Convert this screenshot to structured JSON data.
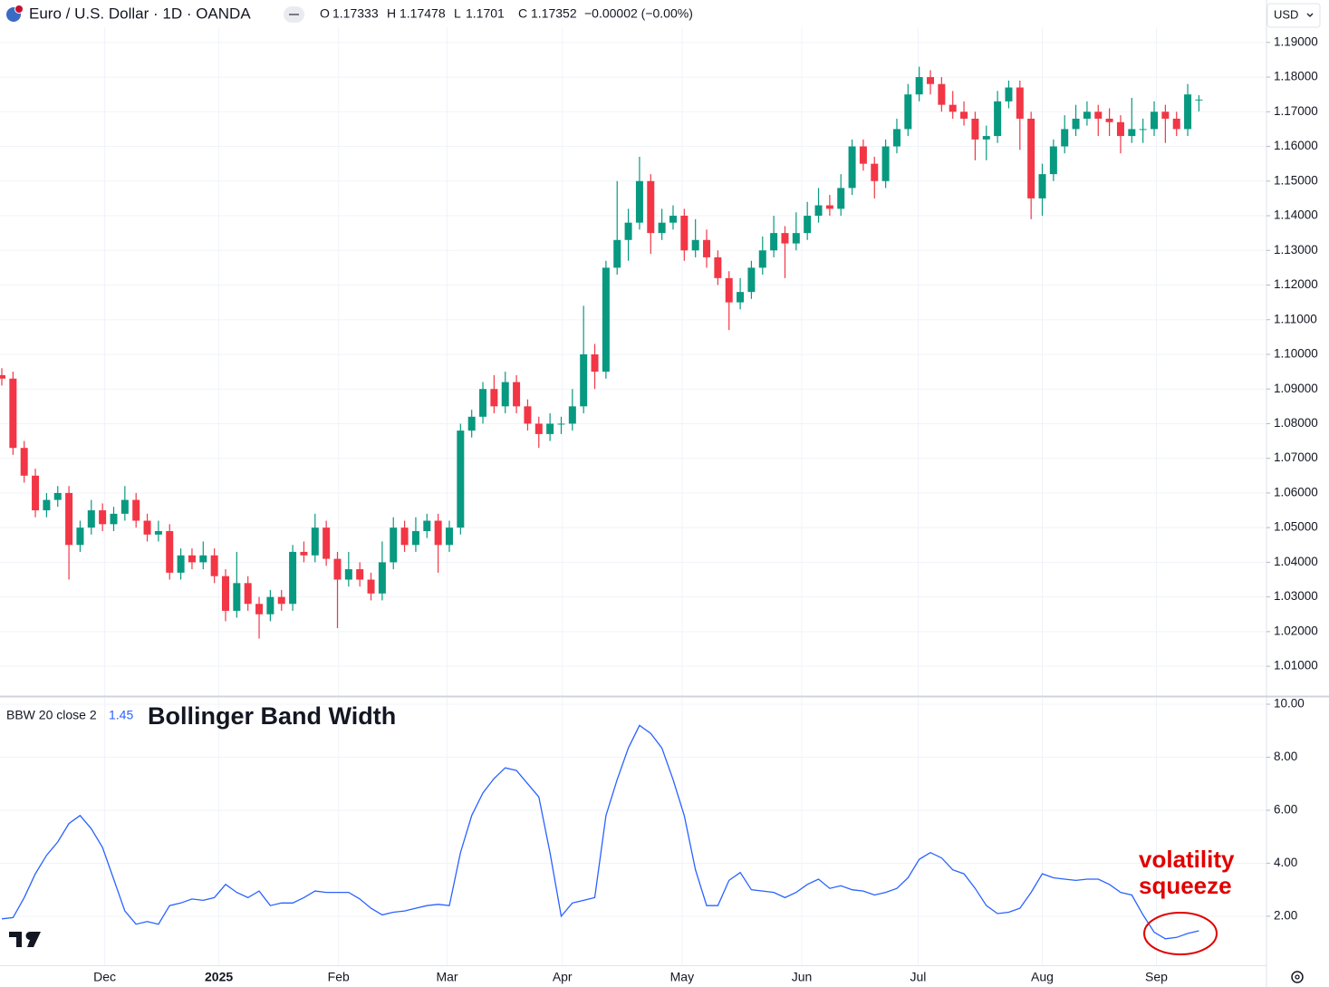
{
  "chart_data": [
    {
      "type": "candlestick",
      "title": "Euro / U.S. Dollar · 1D · OANDA",
      "ohlc_labels": [
        "O",
        "H",
        "L",
        "C"
      ],
      "change": "−0.00002 (−0.00%)",
      "currency": "USD",
      "up_color": "#089981",
      "down_color": "#f23645",
      "grid": true,
      "ylim": [
        1.0014,
        1.1944
      ],
      "yticks": [
        {
          "value": 1.19,
          "label": "1.19000"
        },
        {
          "value": 1.18,
          "label": "1.18000"
        },
        {
          "value": 1.17,
          "label": "1.17000"
        },
        {
          "value": 1.16,
          "label": "1.16000"
        },
        {
          "value": 1.15,
          "label": "1.15000"
        },
        {
          "value": 1.14,
          "label": "1.14000"
        },
        {
          "value": 1.13,
          "label": "1.13000"
        },
        {
          "value": 1.12,
          "label": "1.12000"
        },
        {
          "value": 1.11,
          "label": "1.11000"
        },
        {
          "value": 1.1,
          "label": "1.10000"
        },
        {
          "value": 1.09,
          "label": "1.09000"
        },
        {
          "value": 1.08,
          "label": "1.08000"
        },
        {
          "value": 1.07,
          "label": "1.07000"
        },
        {
          "value": 1.06,
          "label": "1.06000"
        },
        {
          "value": 1.05,
          "label": "1.05000"
        },
        {
          "value": 1.04,
          "label": "1.04000"
        },
        {
          "value": 1.03,
          "label": "1.03000"
        },
        {
          "value": 1.02,
          "label": "1.02000"
        },
        {
          "value": 1.01,
          "label": "1.01000"
        }
      ],
      "candles": [
        [
          1.094,
          1.096,
          1.091,
          1.093
        ],
        [
          1.093,
          1.095,
          1.071,
          1.073
        ],
        [
          1.073,
          1.075,
          1.063,
          1.065
        ],
        [
          1.065,
          1.067,
          1.053,
          1.055
        ],
        [
          1.055,
          1.06,
          1.053,
          1.058
        ],
        [
          1.058,
          1.062,
          1.056,
          1.06
        ],
        [
          1.06,
          1.062,
          1.035,
          1.045
        ],
        [
          1.045,
          1.052,
          1.043,
          1.05
        ],
        [
          1.05,
          1.058,
          1.048,
          1.055
        ],
        [
          1.055,
          1.057,
          1.049,
          1.051
        ],
        [
          1.051,
          1.056,
          1.049,
          1.054
        ],
        [
          1.054,
          1.062,
          1.052,
          1.058
        ],
        [
          1.058,
          1.06,
          1.05,
          1.052
        ],
        [
          1.052,
          1.054,
          1.046,
          1.048
        ],
        [
          1.048,
          1.052,
          1.046,
          1.049
        ],
        [
          1.049,
          1.051,
          1.035,
          1.037
        ],
        [
          1.037,
          1.044,
          1.035,
          1.042
        ],
        [
          1.042,
          1.044,
          1.038,
          1.04
        ],
        [
          1.04,
          1.046,
          1.038,
          1.042
        ],
        [
          1.042,
          1.044,
          1.034,
          1.036
        ],
        [
          1.036,
          1.038,
          1.023,
          1.026
        ],
        [
          1.026,
          1.043,
          1.024,
          1.034
        ],
        [
          1.034,
          1.036,
          1.026,
          1.028
        ],
        [
          1.028,
          1.03,
          1.018,
          1.025
        ],
        [
          1.025,
          1.032,
          1.023,
          1.03
        ],
        [
          1.03,
          1.032,
          1.026,
          1.028
        ],
        [
          1.028,
          1.045,
          1.026,
          1.043
        ],
        [
          1.043,
          1.046,
          1.04,
          1.042
        ],
        [
          1.042,
          1.054,
          1.04,
          1.05
        ],
        [
          1.05,
          1.052,
          1.039,
          1.041
        ],
        [
          1.041,
          1.043,
          1.021,
          1.035
        ],
        [
          1.035,
          1.043,
          1.033,
          1.038
        ],
        [
          1.038,
          1.04,
          1.033,
          1.035
        ],
        [
          1.035,
          1.037,
          1.029,
          1.031
        ],
        [
          1.031,
          1.046,
          1.029,
          1.04
        ],
        [
          1.04,
          1.053,
          1.038,
          1.05
        ],
        [
          1.05,
          1.052,
          1.043,
          1.045
        ],
        [
          1.045,
          1.053,
          1.043,
          1.049
        ],
        [
          1.049,
          1.054,
          1.047,
          1.052
        ],
        [
          1.052,
          1.054,
          1.037,
          1.045
        ],
        [
          1.045,
          1.052,
          1.043,
          1.05
        ],
        [
          1.05,
          1.08,
          1.048,
          1.078
        ],
        [
          1.078,
          1.084,
          1.076,
          1.082
        ],
        [
          1.082,
          1.092,
          1.08,
          1.09
        ],
        [
          1.09,
          1.094,
          1.083,
          1.085
        ],
        [
          1.085,
          1.095,
          1.083,
          1.092
        ],
        [
          1.092,
          1.094,
          1.083,
          1.085
        ],
        [
          1.085,
          1.087,
          1.078,
          1.08
        ],
        [
          1.08,
          1.082,
          1.073,
          1.077
        ],
        [
          1.077,
          1.083,
          1.075,
          1.08
        ],
        [
          1.08,
          1.082,
          1.077,
          1.08
        ],
        [
          1.08,
          1.09,
          1.078,
          1.085
        ],
        [
          1.085,
          1.114,
          1.083,
          1.1
        ],
        [
          1.1,
          1.103,
          1.09,
          1.095
        ],
        [
          1.095,
          1.127,
          1.093,
          1.125
        ],
        [
          1.125,
          1.15,
          1.123,
          1.133
        ],
        [
          1.133,
          1.142,
          1.127,
          1.138
        ],
        [
          1.138,
          1.157,
          1.136,
          1.15
        ],
        [
          1.15,
          1.152,
          1.129,
          1.135
        ],
        [
          1.135,
          1.142,
          1.133,
          1.138
        ],
        [
          1.138,
          1.143,
          1.136,
          1.14
        ],
        [
          1.14,
          1.142,
          1.127,
          1.13
        ],
        [
          1.13,
          1.139,
          1.128,
          1.133
        ],
        [
          1.133,
          1.136,
          1.125,
          1.128
        ],
        [
          1.128,
          1.13,
          1.12,
          1.122
        ],
        [
          1.122,
          1.124,
          1.107,
          1.115
        ],
        [
          1.115,
          1.122,
          1.113,
          1.118
        ],
        [
          1.118,
          1.127,
          1.116,
          1.125
        ],
        [
          1.125,
          1.134,
          1.123,
          1.13
        ],
        [
          1.13,
          1.14,
          1.128,
          1.135
        ],
        [
          1.135,
          1.137,
          1.122,
          1.132
        ],
        [
          1.132,
          1.141,
          1.13,
          1.135
        ],
        [
          1.135,
          1.144,
          1.133,
          1.14
        ],
        [
          1.14,
          1.148,
          1.138,
          1.143
        ],
        [
          1.143,
          1.146,
          1.14,
          1.142
        ],
        [
          1.142,
          1.152,
          1.14,
          1.148
        ],
        [
          1.148,
          1.162,
          1.146,
          1.16
        ],
        [
          1.16,
          1.162,
          1.153,
          1.155
        ],
        [
          1.155,
          1.157,
          1.145,
          1.15
        ],
        [
          1.15,
          1.162,
          1.148,
          1.16
        ],
        [
          1.16,
          1.168,
          1.158,
          1.165
        ],
        [
          1.165,
          1.178,
          1.163,
          1.175
        ],
        [
          1.175,
          1.183,
          1.173,
          1.18
        ],
        [
          1.18,
          1.182,
          1.175,
          1.178
        ],
        [
          1.178,
          1.18,
          1.17,
          1.172
        ],
        [
          1.172,
          1.176,
          1.168,
          1.17
        ],
        [
          1.17,
          1.173,
          1.166,
          1.168
        ],
        [
          1.168,
          1.17,
          1.156,
          1.162
        ],
        [
          1.162,
          1.166,
          1.156,
          1.163
        ],
        [
          1.163,
          1.176,
          1.161,
          1.173
        ],
        [
          1.173,
          1.179,
          1.171,
          1.177
        ],
        [
          1.177,
          1.179,
          1.159,
          1.168
        ],
        [
          1.168,
          1.17,
          1.139,
          1.145
        ],
        [
          1.145,
          1.155,
          1.14,
          1.152
        ],
        [
          1.152,
          1.162,
          1.15,
          1.16
        ],
        [
          1.16,
          1.169,
          1.158,
          1.165
        ],
        [
          1.165,
          1.172,
          1.163,
          1.168
        ],
        [
          1.168,
          1.173,
          1.166,
          1.17
        ],
        [
          1.17,
          1.172,
          1.163,
          1.168
        ],
        [
          1.168,
          1.171,
          1.163,
          1.167
        ],
        [
          1.167,
          1.169,
          1.158,
          1.163
        ],
        [
          1.163,
          1.174,
          1.161,
          1.165
        ],
        [
          1.165,
          1.168,
          1.161,
          1.165
        ],
        [
          1.165,
          1.173,
          1.163,
          1.17
        ],
        [
          1.17,
          1.172,
          1.161,
          1.168
        ],
        [
          1.168,
          1.17,
          1.163,
          1.165
        ],
        [
          1.165,
          1.178,
          1.163,
          1.175
        ],
        [
          1.17333,
          1.17478,
          1.1701,
          1.17352
        ]
      ]
    },
    {
      "type": "line",
      "annotations": [
        {
          "text": "Bollinger Band Width",
          "color": "#000000"
        },
        {
          "text": [
            "volatility",
            "squeeze"
          ],
          "color": "#e00000"
        }
      ],
      "grid": true,
      "ylim": [
        0.15,
        10.24
      ],
      "yticks": [
        {
          "value": 10,
          "label": "10.00"
        },
        {
          "value": 8,
          "label": "8.00"
        },
        {
          "value": 6,
          "label": "6.00"
        },
        {
          "value": 4,
          "label": "4.00"
        },
        {
          "value": 2,
          "label": "2.00"
        }
      ],
      "xlim": [
        -0.162,
        113.04
      ],
      "xticks": [
        {
          "value": 9.2,
          "label": "Dec"
        },
        {
          "value": 19.4,
          "label": "2025"
        },
        {
          "value": 30.1,
          "label": "Feb"
        },
        {
          "value": 39.8,
          "label": "Mar"
        },
        {
          "value": 50.1,
          "label": "Apr"
        },
        {
          "value": 60.8,
          "label": "May"
        },
        {
          "value": 71.5,
          "label": "Jun"
        },
        {
          "value": 81.9,
          "label": "Jul"
        },
        {
          "value": 93,
          "label": "Aug"
        },
        {
          "value": 103.2,
          "label": "Sep"
        }
      ],
      "series": [
        {
          "name": "BBW 20 close 2",
          "color": "#2962ff",
          "values": [
            1.9,
            1.95,
            2.7,
            3.6,
            4.3,
            4.8,
            5.5,
            5.8,
            5.3,
            4.6,
            3.4,
            2.2,
            1.7,
            1.8,
            1.7,
            2.4,
            2.5,
            2.65,
            2.6,
            2.7,
            3.2,
            2.9,
            2.7,
            2.95,
            2.4,
            2.5,
            2.5,
            2.7,
            2.95,
            2.9,
            2.9,
            2.9,
            2.65,
            2.3,
            2.05,
            2.15,
            2.2,
            2.3,
            2.4,
            2.45,
            2.4,
            4.4,
            5.8,
            6.65,
            7.2,
            7.6,
            7.5,
            7.0,
            6.5,
            4.4,
            2.0,
            2.5,
            2.6,
            2.7,
            5.8,
            7.15,
            8.35,
            9.2,
            8.9,
            8.35,
            7.15,
            5.8,
            3.75,
            2.4,
            2.4,
            3.35,
            3.65,
            3.0,
            2.95,
            2.9,
            2.7,
            2.9,
            3.2,
            3.4,
            3.05,
            3.15,
            3.0,
            2.95,
            2.8,
            2.9,
            3.05,
            3.45,
            4.15,
            4.4,
            4.2,
            3.75,
            3.6,
            3.05,
            2.4,
            2.1,
            2.15,
            2.3,
            2.9,
            3.6,
            3.45,
            3.4,
            3.35,
            3.4,
            3.4,
            3.2,
            2.9,
            2.8,
            2.05,
            1.4,
            1.15,
            1.2,
            1.35,
            1.45
          ]
        }
      ]
    }
  ]
}
